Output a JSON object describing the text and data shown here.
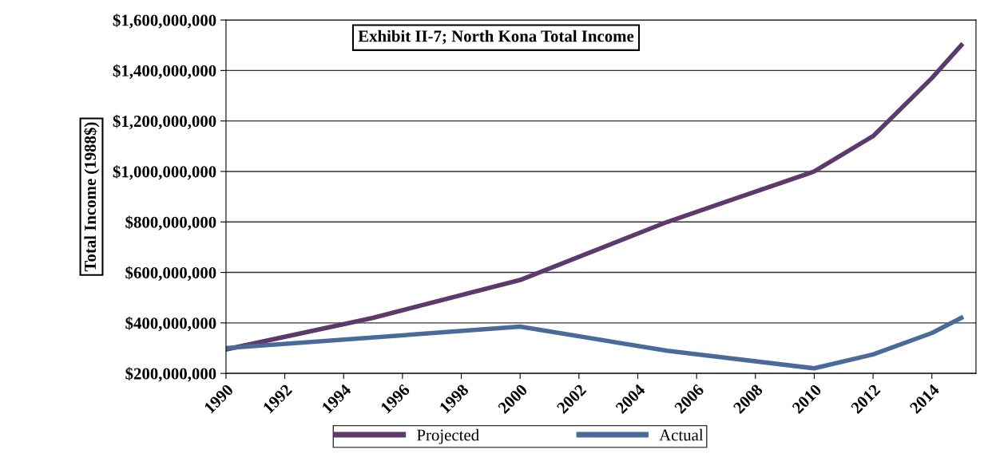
{
  "chart_data": {
    "type": "line",
    "title": "Exhibit II-7; North Kona Total Income",
    "ylabel": "Total Income (1988$)",
    "xlim": [
      1990,
      2015.5
    ],
    "xticks": [
      1990,
      1992,
      1994,
      1996,
      1998,
      2000,
      2002,
      2004,
      2006,
      2008,
      2010,
      2012,
      2014
    ],
    "ylim": [
      200000000,
      1600000000
    ],
    "yticks": [
      {
        "value": 200000000,
        "label": "$200,000,000"
      },
      {
        "value": 400000000,
        "label": "$400,000,000"
      },
      {
        "value": 600000000,
        "label": "$600,000,000"
      },
      {
        "value": 800000000,
        "label": "$800,000,000"
      },
      {
        "value": 1000000000,
        "label": "$1,000,000,000"
      },
      {
        "value": 1200000000,
        "label": "$1,200,000,000"
      },
      {
        "value": 1400000000,
        "label": "$1,400,000,000"
      },
      {
        "value": 1600000000,
        "label": "$1,600,000,000"
      }
    ],
    "grid": "y",
    "legend": "bottom",
    "marker": "none",
    "line_style": "solid",
    "series": [
      {
        "name": "Projected",
        "color": "#5e3a6c",
        "x": [
          1990,
          1995,
          2000,
          2005,
          2010,
          2012,
          2014,
          2015
        ],
        "values": [
          295000000,
          420000000,
          570000000,
          800000000,
          1000000000,
          1140000000,
          1370000000,
          1500000000
        ]
      },
      {
        "name": "Actual",
        "color": "#4a6a9a",
        "x": [
          1990,
          2000,
          2005,
          2010,
          2012,
          2014,
          2015
        ],
        "values": [
          300000000,
          385000000,
          290000000,
          220000000,
          275000000,
          360000000,
          420000000
        ]
      }
    ]
  }
}
